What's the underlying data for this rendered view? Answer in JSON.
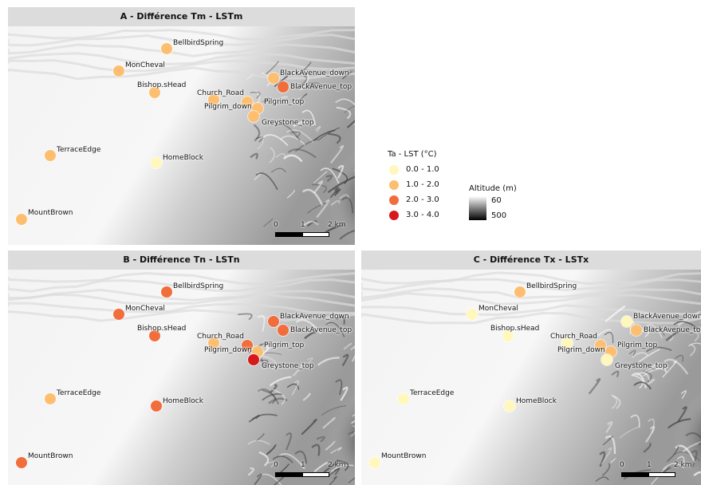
{
  "panels": {
    "A": {
      "title": "A - Différence Tm - LSTm",
      "stations": [
        {
          "name": "BellbirdSpring",
          "color": "#fdbf6f"
        },
        {
          "name": "MonCheval",
          "color": "#fdbf6f"
        },
        {
          "name": "Bishop.sHead",
          "color": "#fdbf6f"
        },
        {
          "name": "BlackAvenue_down",
          "color": "#fdbf6f"
        },
        {
          "name": "BlackAvenue_top",
          "color": "#f16d3c"
        },
        {
          "name": "Church_Road",
          "color": "#fdbf6f"
        },
        {
          "name": "Pilgrim_down",
          "color": "#fdbf6f"
        },
        {
          "name": "Pilgrim_top",
          "color": "#fdbf6f"
        },
        {
          "name": "Greystone_top",
          "color": "#fdbf6f"
        },
        {
          "name": "TerraceEdge",
          "color": "#fdbf6f"
        },
        {
          "name": "HomeBlock",
          "color": "#fff7bc"
        },
        {
          "name": "MountBrown",
          "color": "#fdbf6f"
        }
      ]
    },
    "B": {
      "title": "B - Différence Tn - LSTn",
      "stations": [
        {
          "name": "BellbirdSpring",
          "color": "#f16d3c"
        },
        {
          "name": "MonCheval",
          "color": "#f16d3c"
        },
        {
          "name": "Bishop.sHead",
          "color": "#f16d3c"
        },
        {
          "name": "BlackAvenue_down",
          "color": "#f16d3c"
        },
        {
          "name": "BlackAvenue_top",
          "color": "#f16d3c"
        },
        {
          "name": "Church_Road",
          "color": "#fdbf6f"
        },
        {
          "name": "Pilgrim_down",
          "color": "#f16d3c"
        },
        {
          "name": "Pilgrim_top",
          "color": "#fdbf6f"
        },
        {
          "name": "Greystone_top",
          "color": "#d7191c"
        },
        {
          "name": "TerraceEdge",
          "color": "#fdbf6f"
        },
        {
          "name": "HomeBlock",
          "color": "#f16d3c"
        },
        {
          "name": "MountBrown",
          "color": "#f16d3c"
        }
      ]
    },
    "C": {
      "title": "C - Différence Tx - LSTx",
      "stations": [
        {
          "name": "BellbirdSpring",
          "color": "#fdbf6f"
        },
        {
          "name": "MonCheval",
          "color": "#fff7bc"
        },
        {
          "name": "Bishop.sHead",
          "color": "#fff7bc"
        },
        {
          "name": "BlackAvenue_down",
          "color": "#fff7bc"
        },
        {
          "name": "BlackAvenue_top",
          "color": "#fdbf6f"
        },
        {
          "name": "Church_Road",
          "color": "#fff7bc"
        },
        {
          "name": "Pilgrim_down",
          "color": "#fdbf6f"
        },
        {
          "name": "Pilgrim_top",
          "color": "#fdbf6f"
        },
        {
          "name": "Greystone_top",
          "color": "#fff7bc"
        },
        {
          "name": "TerraceEdge",
          "color": "#fff7bc"
        },
        {
          "name": "HomeBlock",
          "color": "#fff7bc"
        },
        {
          "name": "MountBrown",
          "color": "#fff7bc"
        }
      ]
    }
  },
  "scalebar": {
    "ticks": [
      "0",
      "1",
      "2 km"
    ]
  },
  "legend": {
    "ta_title": "Ta - LST (°C)",
    "classes": [
      {
        "label": "0.0 - 1.0",
        "color": "#fff7bc"
      },
      {
        "label": "1.0 - 2.0",
        "color": "#fdbf6f"
      },
      {
        "label": "2.0 - 3.0",
        "color": "#f16d3c"
      },
      {
        "label": "3.0 - 4.0",
        "color": "#d7191c"
      }
    ],
    "altitude_title": "Altitude (m)",
    "altitude_min": "60",
    "altitude_max": "500"
  }
}
